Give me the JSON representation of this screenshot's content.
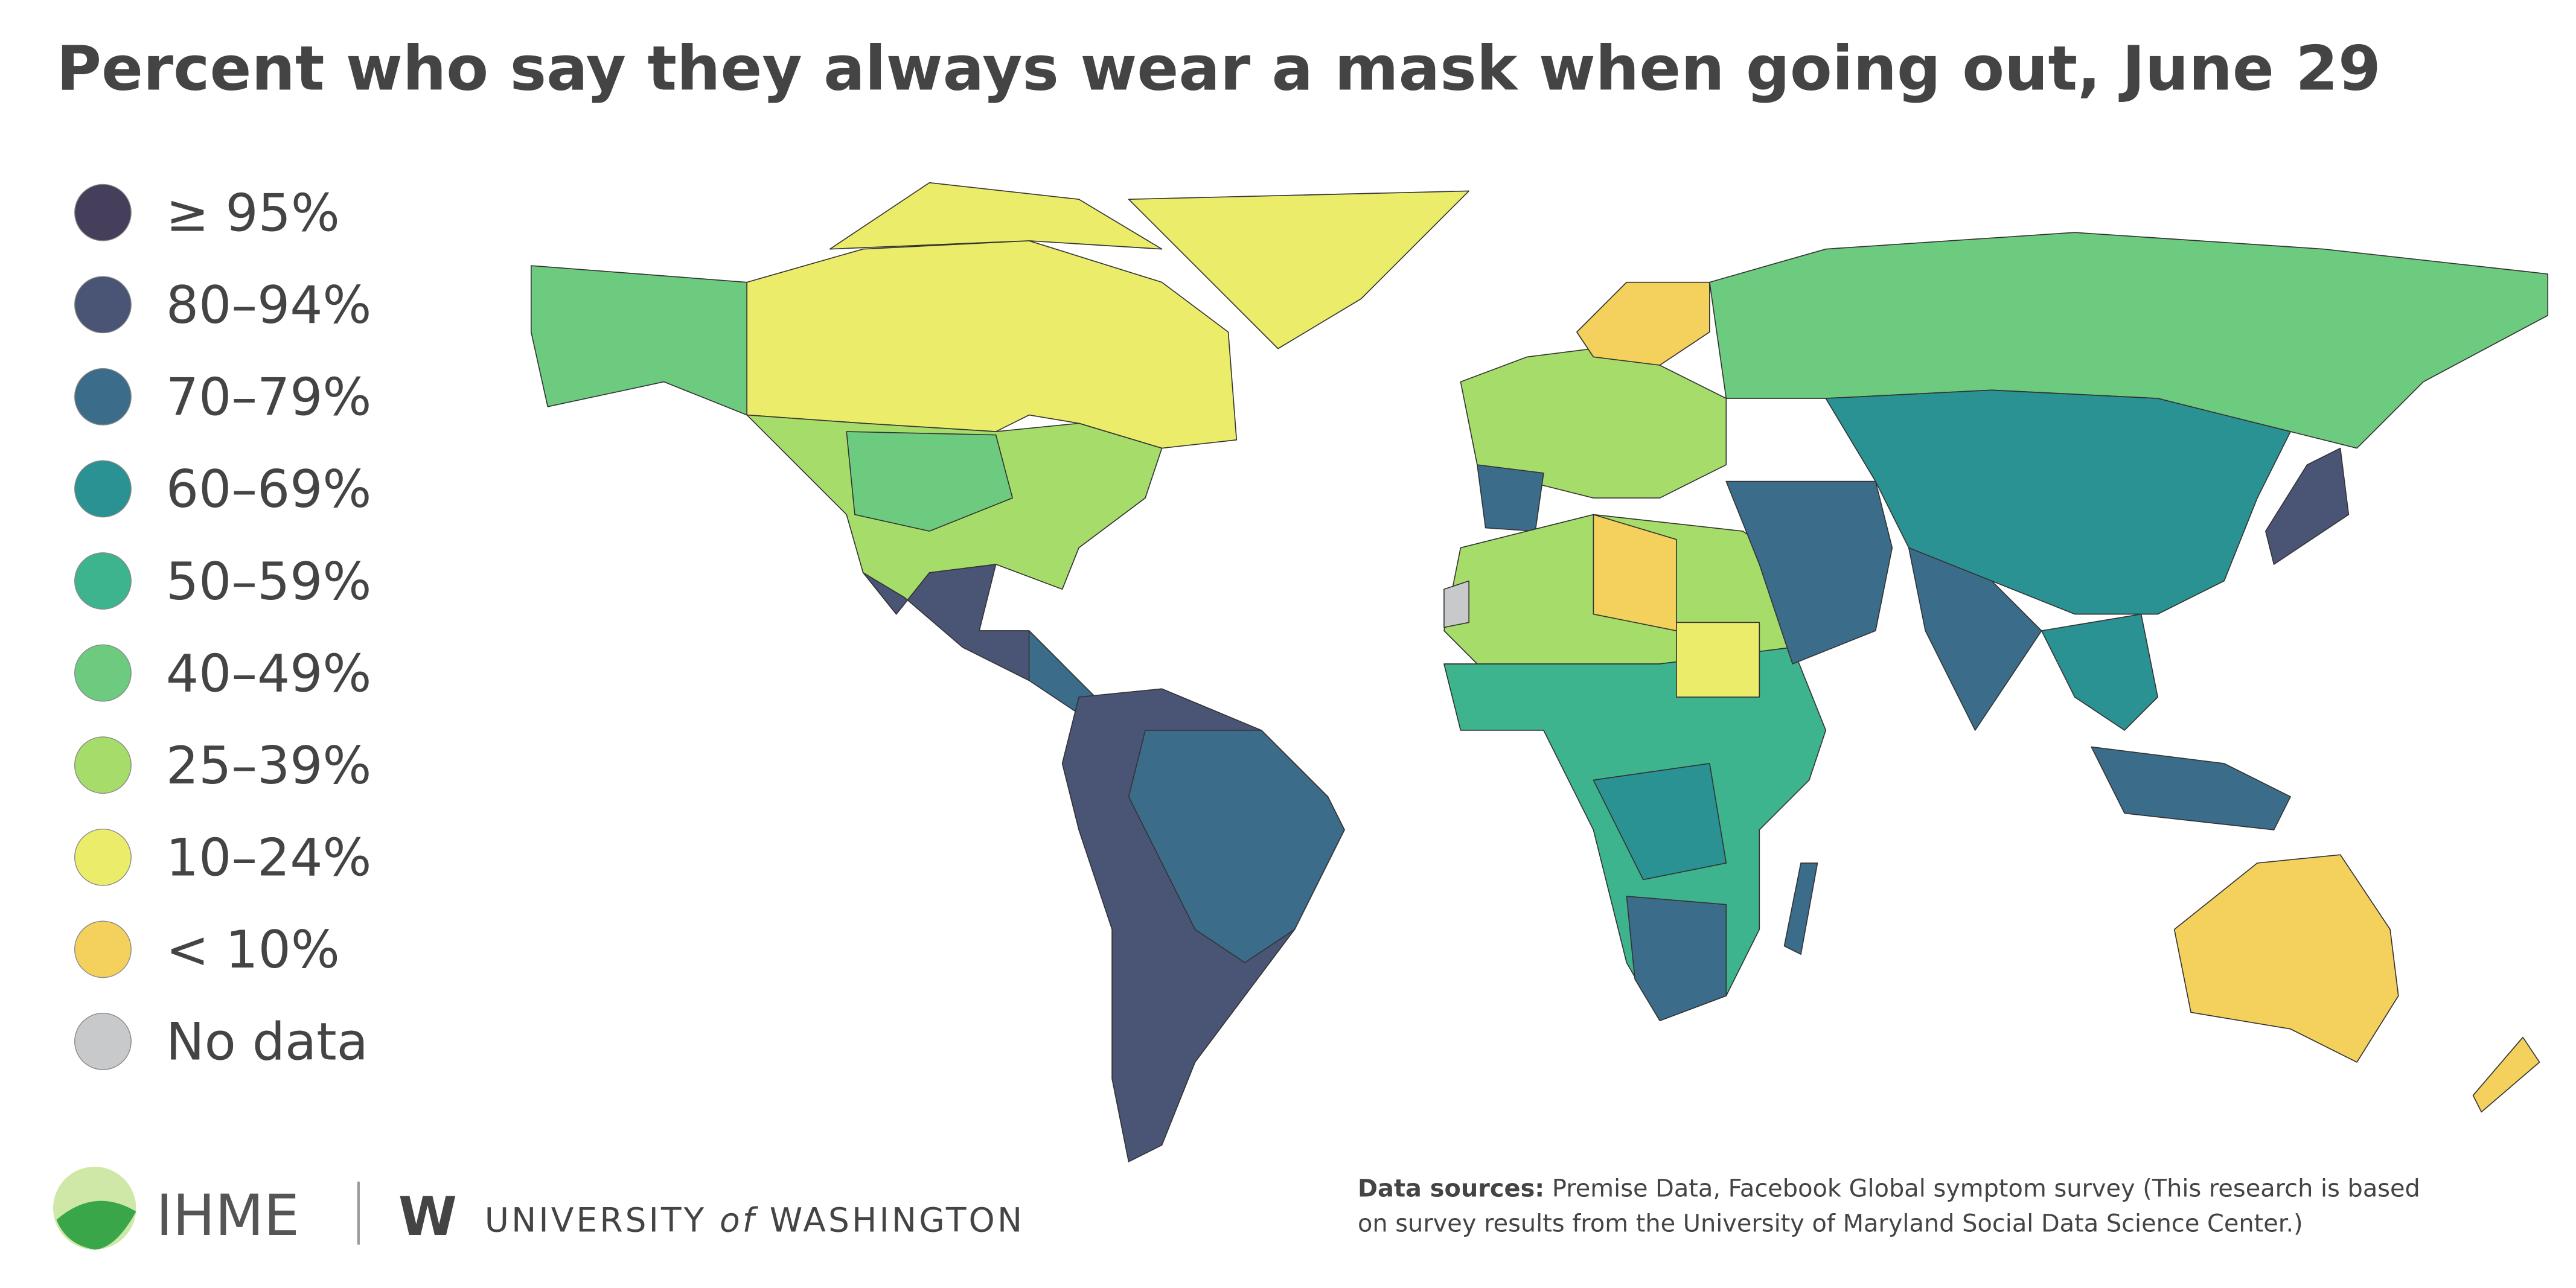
{
  "title": "Percent who say they always wear a mask when going out, June 29",
  "legend": [
    {
      "label": "≥ 95%",
      "color": "#463f5b"
    },
    {
      "label": "80–94%",
      "color": "#4a5575"
    },
    {
      "label": "70–79%",
      "color": "#3b6c8a"
    },
    {
      "label": "60–69%",
      "color": "#2a9292"
    },
    {
      "label": "50–59%",
      "color": "#3db38e"
    },
    {
      "label": "40–49%",
      "color": "#6ccb7f"
    },
    {
      "label": "25–39%",
      "color": "#a6dc6a"
    },
    {
      "label": "10–24%",
      "color": "#ecec6b"
    },
    {
      "label": "< 10%",
      "color": "#f4d15c"
    },
    {
      "label": "No data",
      "color": "#c8c9cb"
    }
  ],
  "logos": {
    "ihme": "IHME",
    "uw_mark": "W",
    "uw_name": [
      "UNIVERSITY",
      "of",
      "WASHINGTON"
    ]
  },
  "sources": {
    "label": "Data sources:",
    "lines": [
      "Premise Data, Facebook Global symptom survey (This research is based",
      "on survey results from the University of Maryland Social Data Science Center.)"
    ]
  }
}
